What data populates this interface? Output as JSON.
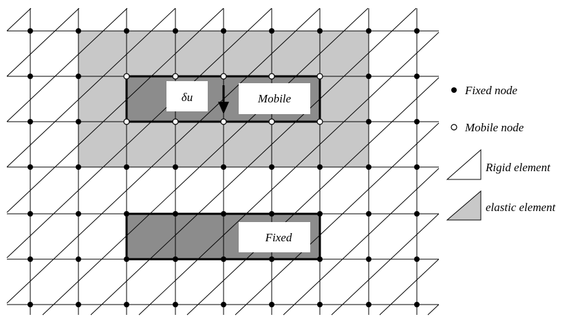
{
  "labels": {
    "delta_u": "δu",
    "mobile": "Mobile",
    "fixed": "Fixed"
  },
  "legend": {
    "fixed_node": "Fixed node",
    "mobile_node": "Mobile node",
    "rigid_element": "Rigid element",
    "elastic_element": "elastic element"
  },
  "colors": {
    "elastic_fill": "#c8c8c8",
    "block_fill": "#8c8c8c",
    "line": "#000000",
    "background": "#ffffff"
  }
}
